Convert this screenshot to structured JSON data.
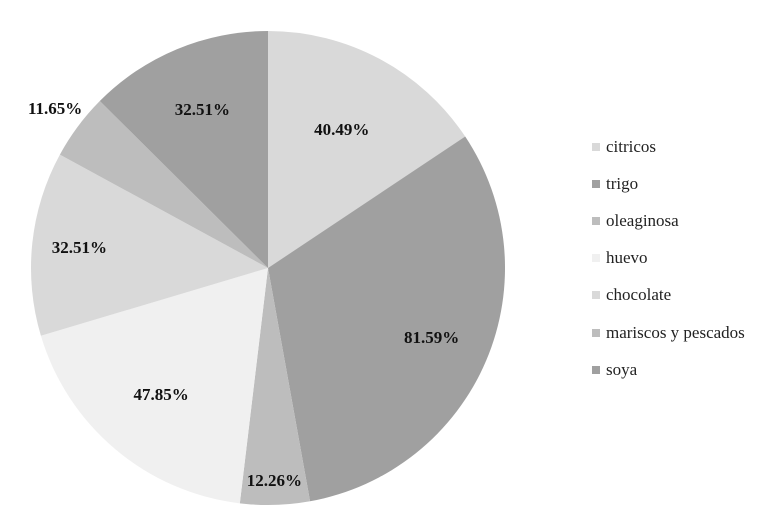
{
  "chart_data": {
    "type": "pie",
    "title": "",
    "categories": [
      "citricos",
      "trigo",
      "oleaginosa",
      "huevo",
      "chocolate",
      "mariscos y pescados",
      "soya"
    ],
    "values": [
      40.49,
      81.59,
      12.26,
      47.85,
      32.51,
      11.65,
      32.51
    ],
    "labels": [
      "40.49%",
      "81.59%",
      "12.26%",
      "47.85%",
      "32.51%",
      "11.65%",
      "32.51%"
    ],
    "colors": [
      "#d9d9d9",
      "#a0a0a0",
      "#bdbdbd",
      "#f0f0f0",
      "#d9d9d9",
      "#bdbdbd",
      "#a0a0a0"
    ],
    "start_angle": "top, clockwise",
    "legend_position": "right"
  },
  "legend": {
    "items": [
      {
        "label": "citricos",
        "color": "#d9d9d9"
      },
      {
        "label": "trigo",
        "color": "#a0a0a0"
      },
      {
        "label": "oleaginosa",
        "color": "#bdbdbd"
      },
      {
        "label": "huevo",
        "color": "#f0f0f0"
      },
      {
        "label": "chocolate",
        "color": "#d9d9d9"
      },
      {
        "label": "mariscos y pescados",
        "color": "#bdbdbd"
      },
      {
        "label": "soya",
        "color": "#a0a0a0"
      }
    ]
  }
}
